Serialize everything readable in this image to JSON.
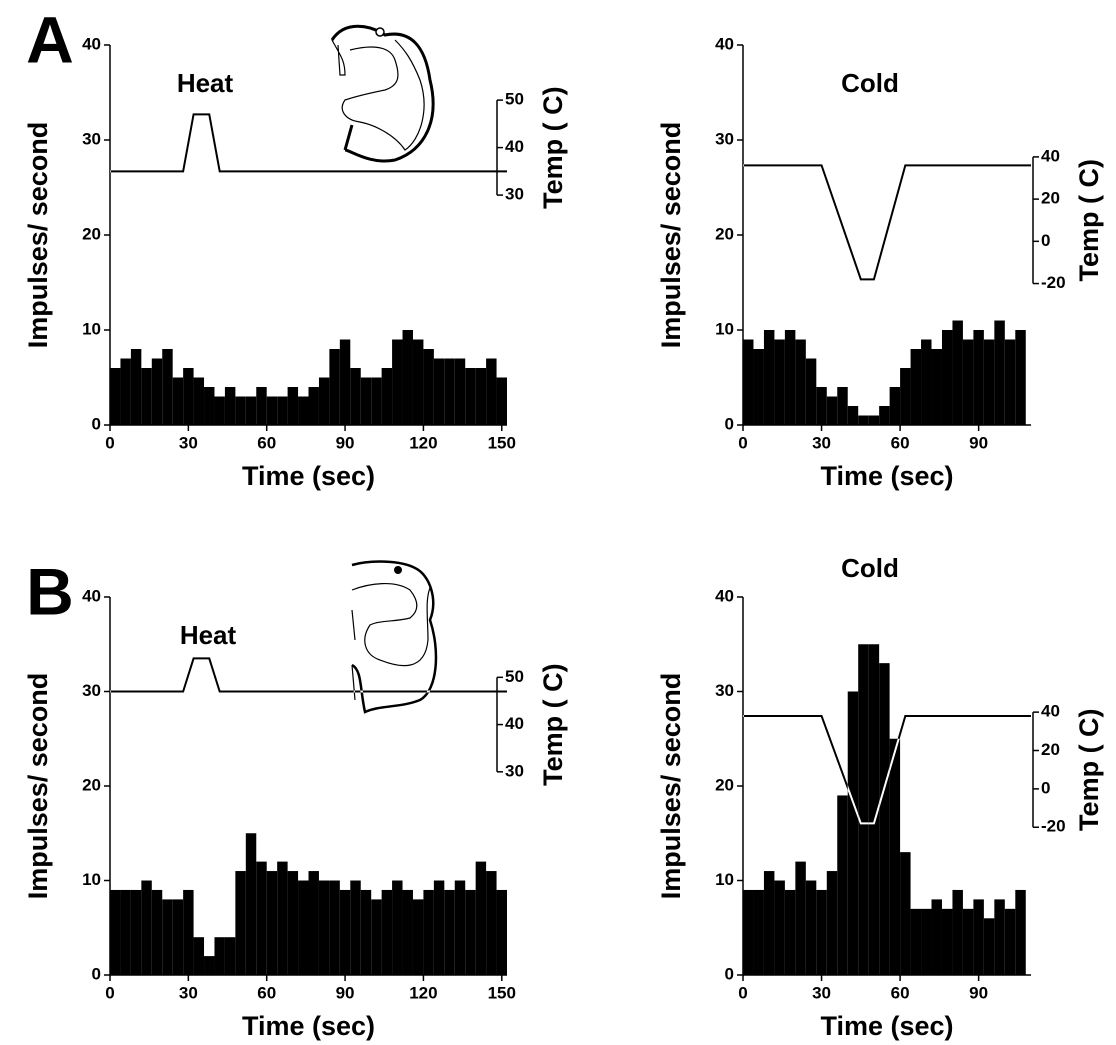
{
  "chart_data": [
    {
      "type": "histogram",
      "panel_label": "A",
      "annotation": "Heat",
      "x_label": "Time (sec)",
      "y_label": "Impulses/ second",
      "y2_label": "Temp ( C)",
      "color": "#000000",
      "bins": [
        0,
        4,
        8,
        12,
        16,
        20,
        24,
        28,
        32,
        36,
        40,
        44,
        48,
        52,
        56,
        60,
        64,
        68,
        72,
        76,
        80,
        84,
        88,
        92,
        96,
        100,
        104,
        108,
        112,
        116,
        120,
        124,
        128,
        132,
        136,
        140,
        144,
        148,
        152
      ],
      "values": [
        6,
        7,
        8,
        6,
        7,
        8,
        5,
        6,
        5,
        4,
        3,
        4,
        3,
        3,
        4,
        3,
        3,
        4,
        3,
        4,
        5,
        8,
        9,
        6,
        5,
        5,
        6,
        9,
        10,
        9,
        8,
        7,
        7,
        7,
        6,
        6,
        7,
        5
      ],
      "line": {
        "x": [
          0,
          28,
          32,
          38,
          42,
          152
        ],
        "values": [
          35,
          35,
          47,
          47,
          35,
          35
        ],
        "axis": "y2"
      },
      "xlim": [
        0,
        152
      ],
      "xticks": [
        0,
        30,
        60,
        90,
        120,
        150
      ],
      "ylim": [
        0,
        40
      ],
      "yticks": [
        0,
        10,
        20,
        30,
        40
      ],
      "y2lim": [
        -18.4,
        61.6
      ],
      "y2ticks": [
        30,
        40,
        50
      ]
    },
    {
      "type": "histogram",
      "annotation": "Cold",
      "x_label": "Time (sec)",
      "y_label": "Impulses/ second",
      "y2_label": "Temp ( C)",
      "color": "#000000",
      "bins": [
        0,
        4,
        8,
        12,
        16,
        20,
        24,
        28,
        32,
        36,
        40,
        44,
        48,
        52,
        56,
        60,
        64,
        68,
        72,
        76,
        80,
        84,
        88,
        92,
        96,
        100,
        104,
        108
      ],
      "values": [
        9,
        8,
        10,
        9,
        10,
        9,
        7,
        4,
        3,
        4,
        2,
        1,
        1,
        2,
        4,
        6,
        8,
        9,
        8,
        10,
        11,
        9,
        10,
        9,
        11,
        9,
        10
      ],
      "line": {
        "x": [
          0,
          30,
          45,
          50,
          62,
          110
        ],
        "values": [
          36,
          36,
          -18,
          -18,
          36,
          36
        ],
        "axis": "y2"
      },
      "xlim": [
        0,
        110
      ],
      "xticks": [
        0,
        30,
        60,
        90
      ],
      "ylim": [
        0,
        40
      ],
      "yticks": [
        0,
        10,
        20,
        30,
        40
      ],
      "y2lim": [
        -87,
        93
      ],
      "y2ticks": [
        -20,
        0,
        20,
        40
      ]
    },
    {
      "type": "histogram",
      "panel_label": "B",
      "annotation": "Heat",
      "x_label": "Time (sec)",
      "y_label": "Impulses/ second",
      "y2_label": "Temp ( C)",
      "color": "#000000",
      "bins": [
        0,
        4,
        8,
        12,
        16,
        20,
        24,
        28,
        32,
        36,
        40,
        44,
        48,
        52,
        56,
        60,
        64,
        68,
        72,
        76,
        80,
        84,
        88,
        92,
        96,
        100,
        104,
        108,
        112,
        116,
        120,
        124,
        128,
        132,
        136,
        140,
        144,
        148,
        152
      ],
      "values": [
        9,
        9,
        9,
        10,
        9,
        8,
        8,
        9,
        4,
        2,
        4,
        4,
        11,
        15,
        12,
        11,
        12,
        11,
        10,
        11,
        10,
        10,
        9,
        10,
        9,
        8,
        9,
        10,
        9,
        8,
        9,
        10,
        9,
        10,
        9,
        12,
        11,
        9
      ],
      "line": {
        "x": [
          0,
          28,
          32,
          38,
          42,
          152
        ],
        "values": [
          47,
          47,
          54,
          54,
          47,
          47
        ],
        "axis": "y2"
      },
      "xlim": [
        0,
        152
      ],
      "xticks": [
        0,
        30,
        60,
        90,
        120,
        150
      ],
      "ylim": [
        0,
        40
      ],
      "yticks": [
        0,
        10,
        20,
        30,
        40
      ],
      "y2lim": [
        -13,
        67
      ],
      "y2ticks": [
        30,
        40,
        50
      ]
    },
    {
      "type": "histogram",
      "annotation": "Cold",
      "x_label": "Time (sec)",
      "y_label": "Impulses/ second",
      "y2_label": "Temp ( C)",
      "color": "#000000",
      "bins": [
        0,
        4,
        8,
        12,
        16,
        20,
        24,
        28,
        32,
        36,
        40,
        44,
        48,
        52,
        56,
        60,
        64,
        68,
        72,
        76,
        80,
        84,
        88,
        92,
        96,
        100,
        104,
        108
      ],
      "values": [
        9,
        9,
        11,
        10,
        9,
        12,
        10,
        9,
        11,
        19,
        30,
        35,
        35,
        33,
        25,
        13,
        7,
        7,
        8,
        7,
        9,
        7,
        8,
        6,
        8,
        7,
        9
      ],
      "line": {
        "x": [
          0,
          30,
          45,
          50,
          62,
          110
        ],
        "values": [
          38,
          38,
          -18,
          -18,
          38,
          38
        ],
        "axis": "y2"
      },
      "xlim": [
        0,
        110
      ],
      "xticks": [
        0,
        30,
        60,
        90
      ],
      "ylim": [
        0,
        40
      ],
      "yticks": [
        0,
        10,
        20,
        30,
        40
      ],
      "y2lim": [
        -97,
        100
      ],
      "y2ticks": [
        -20,
        0,
        20,
        40
      ]
    }
  ]
}
